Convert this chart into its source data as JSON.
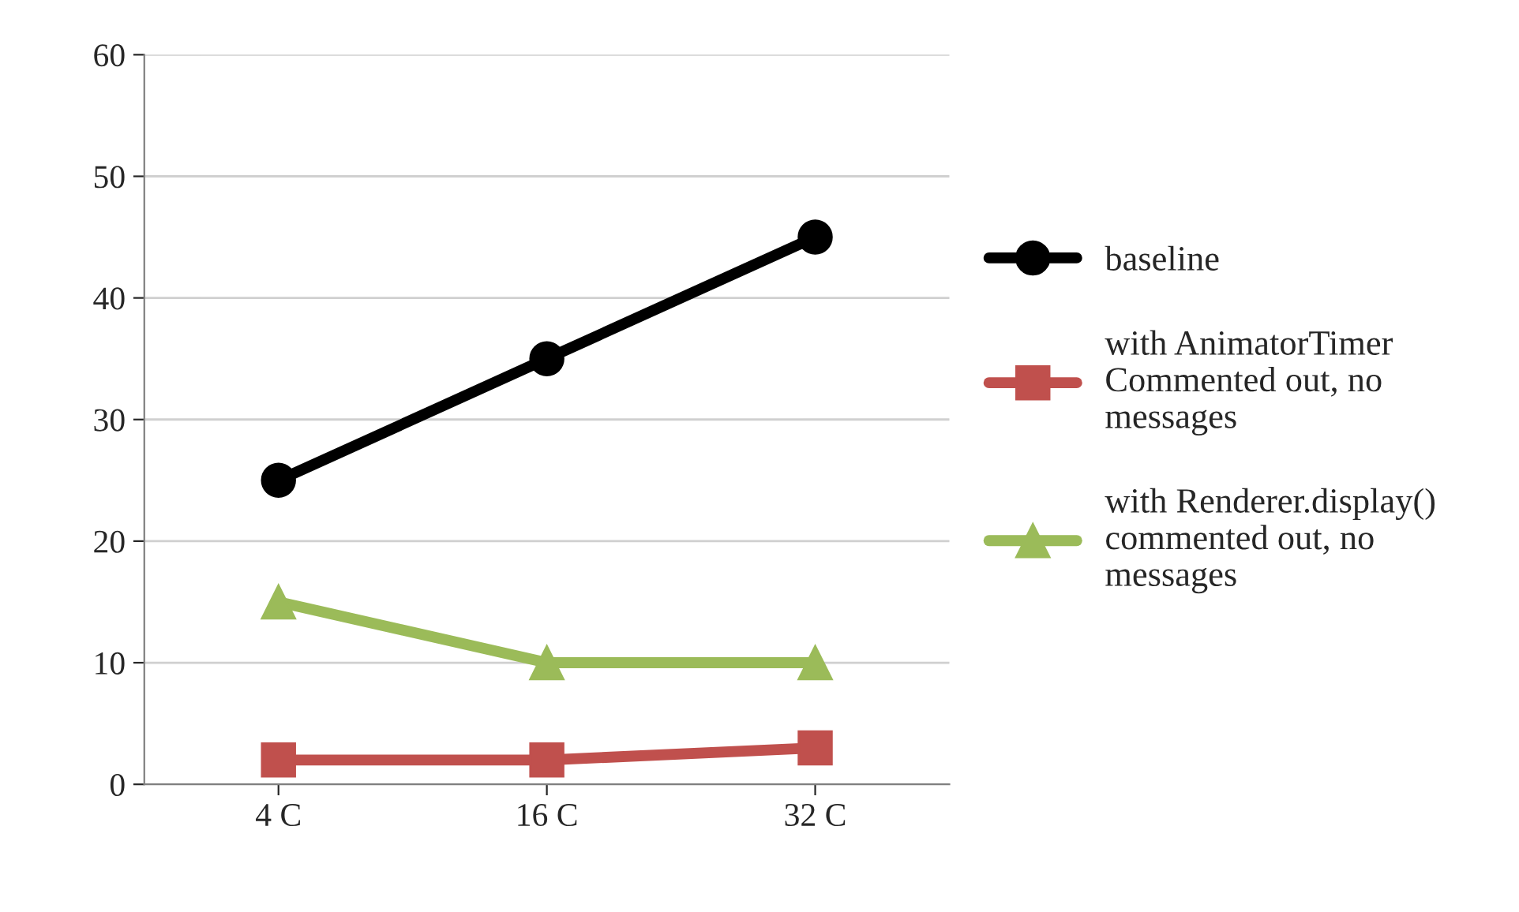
{
  "chart_data": {
    "type": "line",
    "categories": [
      "4 C",
      "16 C",
      "32 C"
    ],
    "series": [
      {
        "name": "baseline",
        "color": "#000000",
        "marker": "circle",
        "values": [
          25,
          35,
          45
        ]
      },
      {
        "name": "with AnimatorTimer\nCommented out, no\nmessages",
        "color": "#c0504d",
        "marker": "square",
        "values": [
          2,
          2,
          3
        ]
      },
      {
        "name": "with Renderer.display()\ncommented out, no\nmessages",
        "color": "#9bbb59",
        "marker": "triangle",
        "values": [
          15,
          10,
          10
        ]
      }
    ],
    "ylim": [
      0,
      60
    ],
    "yticks": [
      0,
      10,
      20,
      30,
      40,
      50,
      60
    ],
    "grid": "y",
    "legend": "right",
    "line_style": "solid"
  }
}
